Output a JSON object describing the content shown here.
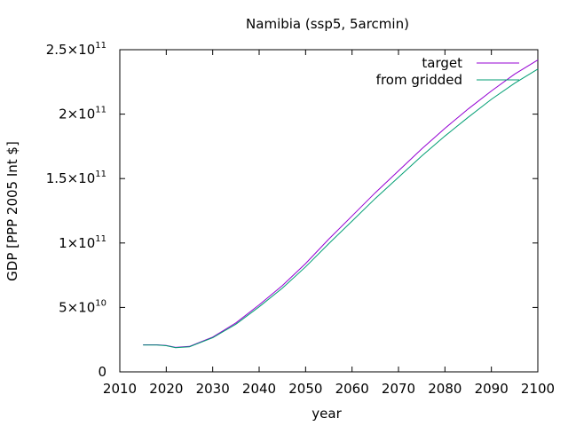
{
  "chart_data": {
    "type": "line",
    "title": "Namibia (ssp5, 5arcmin)",
    "xlabel": "year",
    "ylabel": "GDP [PPP 2005 Int $]",
    "xlim": [
      2010,
      2100
    ],
    "ylim": [
      0,
      250000000000
    ],
    "grid": false,
    "legend_position": "top-right",
    "x_ticks": [
      2010,
      2020,
      2030,
      2040,
      2050,
      2060,
      2070,
      2080,
      2090,
      2100
    ],
    "y_ticks": [
      {
        "value": 0,
        "label": "0",
        "exp": ""
      },
      {
        "value": 50000000000,
        "label": "5×10",
        "exp": "10"
      },
      {
        "value": 100000000000,
        "label": "1×10",
        "exp": "11"
      },
      {
        "value": 150000000000,
        "label": "1.5×10",
        "exp": "11"
      },
      {
        "value": 200000000000,
        "label": "2×10",
        "exp": "11"
      },
      {
        "value": 250000000000,
        "label": "2.5×10",
        "exp": "11"
      }
    ],
    "series": [
      {
        "name": "target",
        "color": "#9400d3",
        "x": [
          2015,
          2018,
          2020,
          2022,
          2025,
          2030,
          2035,
          2040,
          2045,
          2050,
          2055,
          2060,
          2065,
          2070,
          2075,
          2080,
          2085,
          2090,
          2095,
          2100
        ],
        "y": [
          21000000000,
          21000000000,
          20500000000,
          19000000000,
          19800000000,
          27000000000,
          38000000000,
          52000000000,
          67000000000,
          84000000000,
          103000000000,
          121000000000,
          139000000000,
          156000000000,
          173000000000,
          189000000000,
          204000000000,
          218000000000,
          231000000000,
          242000000000
        ]
      },
      {
        "name": "from gridded",
        "color": "#009e73",
        "x": [
          2015,
          2018,
          2020,
          2022,
          2025,
          2030,
          2035,
          2040,
          2045,
          2050,
          2055,
          2060,
          2065,
          2070,
          2075,
          2080,
          2085,
          2090,
          2095,
          2100
        ],
        "y": [
          20800000000,
          20800000000,
          20300000000,
          18800000000,
          19500000000,
          26500000000,
          37000000000,
          50500000000,
          65000000000,
          81500000000,
          99500000000,
          117000000000,
          134500000000,
          151000000000,
          167500000000,
          183000000000,
          197500000000,
          211500000000,
          224000000000,
          235000000000
        ]
      }
    ]
  }
}
